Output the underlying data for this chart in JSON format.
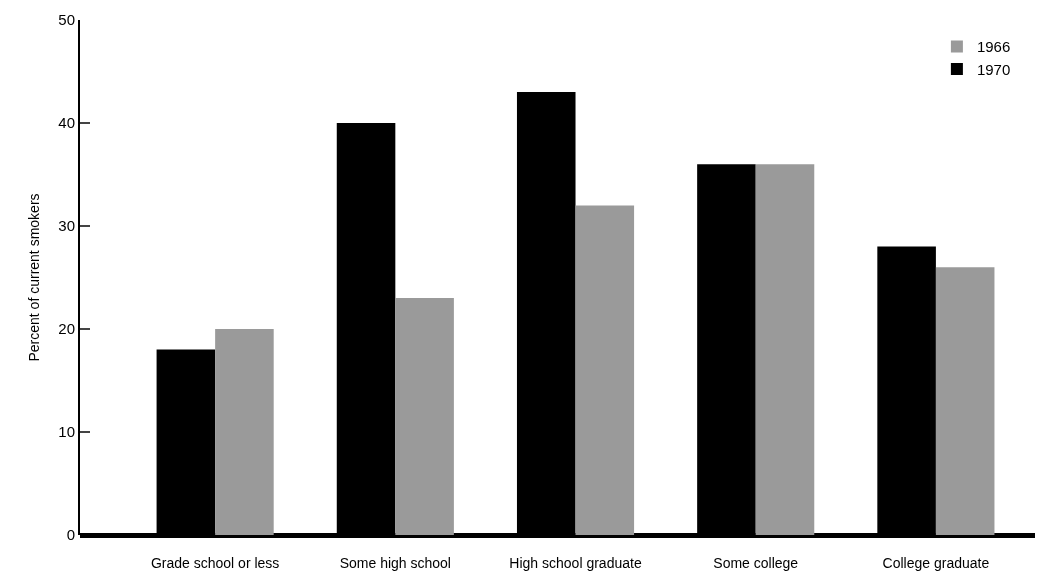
{
  "chart_data": {
    "type": "bar",
    "ylabel": "Percent of current smokers",
    "categories": [
      "Grade school or less",
      "Some high school",
      "High school graduate",
      "Some college",
      "College graduate"
    ],
    "series": [
      {
        "name": "1970",
        "color": "#000000",
        "values": [
          18,
          40,
          43,
          36,
          28
        ]
      },
      {
        "name": "1966",
        "color": "#9a9a9a",
        "values": [
          20,
          23,
          32,
          36,
          26
        ]
      }
    ],
    "ylim": [
      0,
      50
    ],
    "yticks": [
      0,
      10,
      20,
      30,
      40,
      50
    ],
    "legend": "top right"
  }
}
